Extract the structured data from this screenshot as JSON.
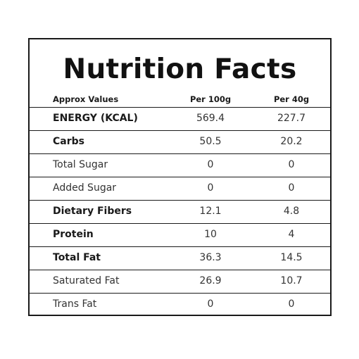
{
  "title": "Nutrition Facts",
  "header": {
    "label": "Approx Values",
    "col1": "Per 100g",
    "col2": "Per 40g"
  },
  "rows": [
    {
      "label": "ENERGY (KCAL)",
      "per100g": "569.4",
      "per40g": "227.7",
      "bold": true
    },
    {
      "label": "Carbs",
      "per100g": "50.5",
      "per40g": "20.2",
      "bold": true
    },
    {
      "label": "Total Sugar",
      "per100g": "0",
      "per40g": "0",
      "bold": false
    },
    {
      "label": "Added Sugar",
      "per100g": "0",
      "per40g": "0",
      "bold": false
    },
    {
      "label": "Dietary Fibers",
      "per100g": "12.1",
      "per40g": "4.8",
      "bold": true
    },
    {
      "label": "Protein",
      "per100g": "10",
      "per40g": "4",
      "bold": true
    },
    {
      "label": "Total Fat",
      "per100g": "36.3",
      "per40g": "14.5",
      "bold": true
    },
    {
      "label": "Saturated Fat",
      "per100g": "26.9",
      "per40g": "10.7",
      "bold": false
    },
    {
      "label": "Trans Fat",
      "per100g": "0",
      "per40g": "0",
      "bold": false
    }
  ]
}
